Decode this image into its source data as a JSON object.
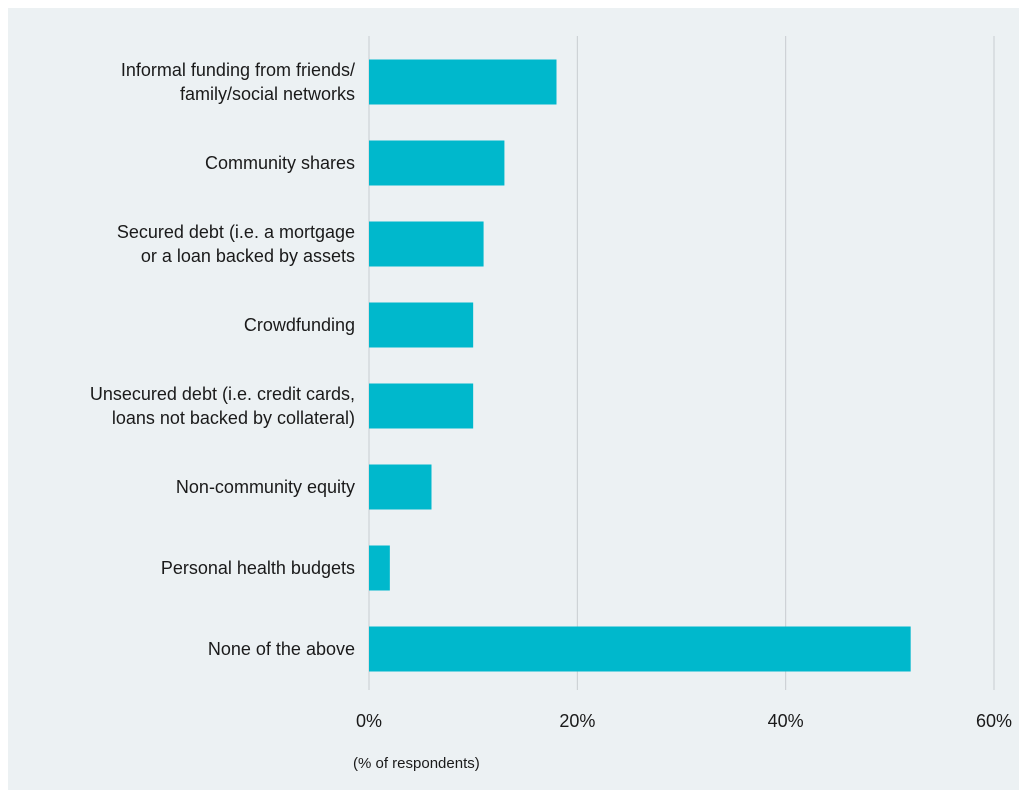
{
  "chart_data": {
    "type": "bar",
    "orientation": "horizontal",
    "categories": [
      [
        "Informal funding from friends/",
        "family/social networks"
      ],
      [
        "Community shares"
      ],
      [
        "Secured debt (i.e. a mortgage",
        "or a loan backed by assets"
      ],
      [
        "Crowdfunding"
      ],
      [
        "Unsecured debt (i.e. credit cards,",
        "loans not backed by collateral)"
      ],
      [
        "Non-community equity"
      ],
      [
        "Personal health budgets"
      ],
      [
        "None of the above"
      ]
    ],
    "values": [
      18,
      13,
      11,
      10,
      10,
      6,
      2,
      52
    ],
    "xlim": [
      0,
      60
    ],
    "xticks": [
      0,
      20,
      40,
      60
    ],
    "tick_suffix": "%",
    "xlabel": "(% of respondents)",
    "grid": true,
    "bar_color": "#00b8cc",
    "grid_color": "#c8cdd0",
    "background": "#ecf1f3"
  }
}
